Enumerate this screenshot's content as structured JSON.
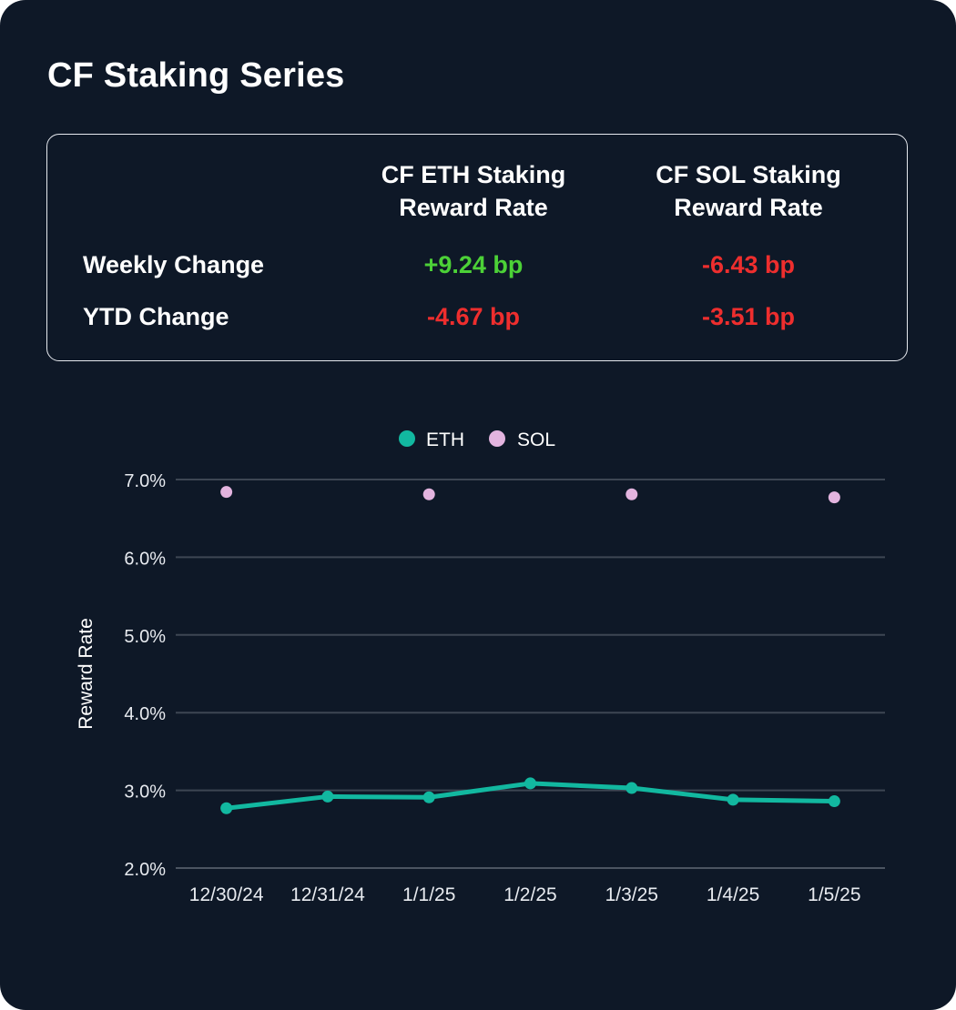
{
  "title": "CF Staking Series",
  "stats": {
    "columns": [
      "CF ETH Staking Reward Rate",
      "CF SOL Staking Reward Rate"
    ],
    "column_lines": [
      [
        "CF ETH Staking",
        "Reward Rate"
      ],
      [
        "CF SOL Staking",
        "Reward Rate"
      ]
    ],
    "rows": [
      {
        "label": "Weekly Change",
        "eth": "+9.24 bp",
        "sol": "-6.43 bp"
      },
      {
        "label": "YTD Change",
        "eth": "-4.67 bp",
        "sol": "-3.51 bp"
      }
    ],
    "colors": {
      "positive": "#4cd137",
      "negative": "#ee2e2e"
    }
  },
  "chart_data": {
    "type": "line",
    "categories": [
      "12/30/24",
      "12/31/24",
      "1/1/25",
      "1/2/25",
      "1/3/25",
      "1/4/25",
      "1/5/25"
    ],
    "ylabel": "Reward Rate",
    "yticks": [
      "2.0%",
      "3.0%",
      "4.0%",
      "5.0%",
      "6.0%",
      "7.0%"
    ],
    "ylim": [
      2.0,
      7.0
    ],
    "grid": true,
    "legend": "top-center",
    "series": [
      {
        "name": "ETH",
        "style": "line",
        "color": "#12b8a0",
        "values": [
          2.77,
          2.92,
          2.91,
          3.09,
          3.03,
          2.88,
          2.86
        ]
      },
      {
        "name": "SOL",
        "style": "scatter",
        "color": "#e3b4df",
        "values": [
          6.84,
          null,
          6.81,
          null,
          6.81,
          null,
          6.77
        ]
      }
    ]
  }
}
